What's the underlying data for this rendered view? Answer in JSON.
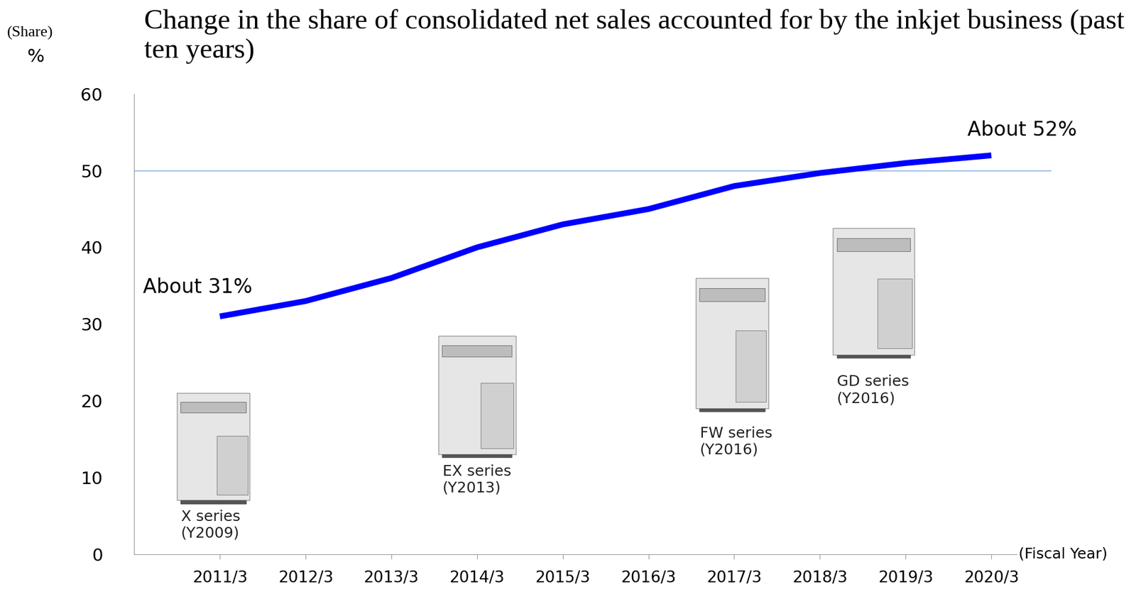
{
  "chart_data": {
    "type": "line",
    "title": "Change in the share of consolidated net sales accounted for by the inkjet business (past ten years)",
    "y_label": "(Share)",
    "y_unit": "%",
    "x_label": "(Fiscal Year)",
    "categories": [
      "2011/3",
      "2012/3",
      "2013/3",
      "2014/3",
      "2015/3",
      "2016/3",
      "2017/3",
      "2018/3",
      "2019/3",
      "2020/3"
    ],
    "values": [
      31,
      33,
      36,
      40,
      43,
      45,
      48,
      49.7,
      51,
      52
    ],
    "color": "#0000ff",
    "ylim": [
      0,
      60
    ],
    "yticks": [
      0,
      10,
      20,
      30,
      40,
      50,
      60
    ],
    "reference_line": 50,
    "annotations": [
      "About 31%",
      "About 52%"
    ],
    "products": [
      {
        "name": "X series",
        "year": "(Y2009)"
      },
      {
        "name": "EX series",
        "year": "(Y2013)"
      },
      {
        "name": "FW series",
        "year": "(Y2016)"
      },
      {
        "name": "GD series",
        "year": "(Y2016)"
      }
    ]
  }
}
